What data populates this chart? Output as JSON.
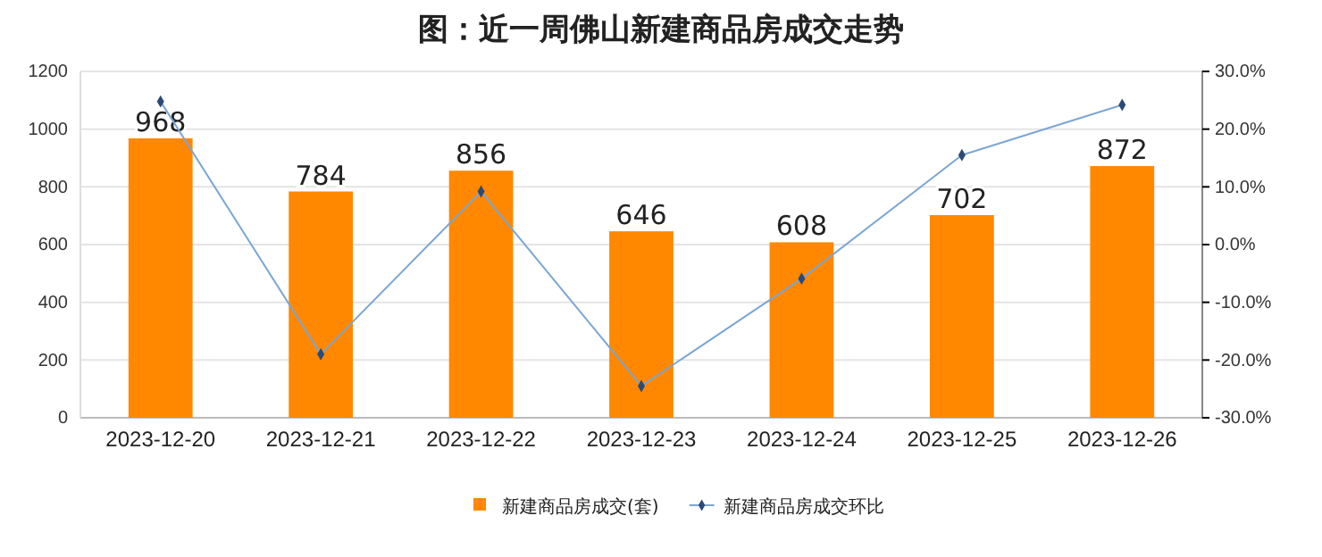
{
  "chart_data": {
    "type": "bar",
    "title": "图：近一周佛山新建商品房成交走势",
    "categories": [
      "2023-12-20",
      "2023-12-21",
      "2023-12-22",
      "2023-12-23",
      "2023-12-24",
      "2023-12-25",
      "2023-12-26"
    ],
    "series": [
      {
        "name": "新建商品房成交(套)",
        "color": "#ff8800",
        "values": [
          968,
          784,
          856,
          646,
          608,
          702,
          872
        ]
      },
      {
        "name": "新建商品房成交环比",
        "type": "line",
        "axis": "y2",
        "color": "#7ba6d4",
        "marker": "diamond",
        "values": [
          24.8,
          -19.0,
          9.2,
          -24.5,
          -5.9,
          15.5,
          24.2
        ]
      }
    ],
    "ylim": [
      0,
      1200
    ],
    "yticks": [
      0,
      200,
      400,
      600,
      800,
      1000,
      1200
    ],
    "y2lim": [
      -30,
      30
    ],
    "y2ticks": [
      {
        "value": -30,
        "label": "-30.0%"
      },
      {
        "value": -20,
        "label": "-20.0%"
      },
      {
        "value": -10,
        "label": "-10.0%"
      },
      {
        "value": 0,
        "label": "0.0%"
      },
      {
        "value": 10,
        "label": "10.0%"
      },
      {
        "value": 20,
        "label": "20.0%"
      },
      {
        "value": 30,
        "label": "30.0%"
      }
    ],
    "grid": "y",
    "legend": "bottom",
    "value_labels": [
      "968",
      "784",
      "856",
      "646",
      "608",
      "702",
      "872"
    ]
  }
}
